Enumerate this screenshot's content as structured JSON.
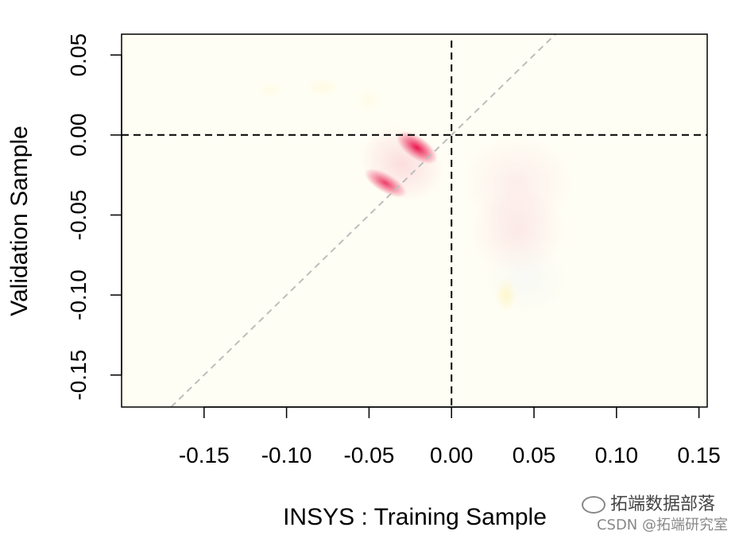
{
  "chart_data": {
    "type": "heatmap",
    "title": "",
    "xlabel": "INSYS : Training Sample",
    "ylabel": "Validation Sample",
    "xlim": [
      -0.2,
      0.155
    ],
    "ylim": [
      -0.17,
      0.063
    ],
    "xticks": [
      -0.15,
      -0.1,
      -0.05,
      0.0,
      0.05,
      0.1,
      0.15
    ],
    "xtick_labels": [
      "-0.15",
      "-0.10",
      "-0.05",
      "0.00",
      "0.05",
      "0.10",
      "0.15"
    ],
    "yticks": [
      0.05,
      0.0,
      -0.05,
      -0.1,
      -0.15
    ],
    "ytick_labels": [
      "0.05",
      "0.00",
      "-0.05",
      "-0.10",
      "-0.15"
    ],
    "reference_lines": {
      "horizontal_y": 0.0,
      "vertical_x": 0.0,
      "diagonal": "y = x"
    },
    "grid": false,
    "background_color": "#FFFEF4",
    "density_blobs": [
      {
        "x": -0.021,
        "y": -0.008,
        "color": "#E8003C",
        "intensity": 1.0
      },
      {
        "x": -0.04,
        "y": -0.03,
        "color": "#E8003C",
        "intensity": 0.8
      },
      {
        "x": -0.03,
        "y": -0.018,
        "color": "#F4A0B4",
        "intensity": 0.35
      },
      {
        "x": 0.04,
        "y": -0.03,
        "color": "#F8C8D4",
        "intensity": 0.3
      },
      {
        "x": 0.04,
        "y": -0.06,
        "color": "#F4B8C8",
        "intensity": 0.3
      },
      {
        "x": 0.045,
        "y": -0.09,
        "color": "#E4E8F8",
        "intensity": 0.25
      },
      {
        "x": 0.033,
        "y": -0.1,
        "color": "#FFF3B0",
        "intensity": 0.6
      },
      {
        "x": -0.078,
        "y": 0.03,
        "color": "#FFF5C8",
        "intensity": 0.4
      },
      {
        "x": -0.05,
        "y": 0.022,
        "color": "#FFF5C8",
        "intensity": 0.3
      },
      {
        "x": -0.11,
        "y": 0.028,
        "color": "#FFF5C8",
        "intensity": 0.3
      }
    ]
  },
  "watermark": {
    "line1": "拓端数据部落",
    "line2": "CSDN @拓端研究室"
  }
}
